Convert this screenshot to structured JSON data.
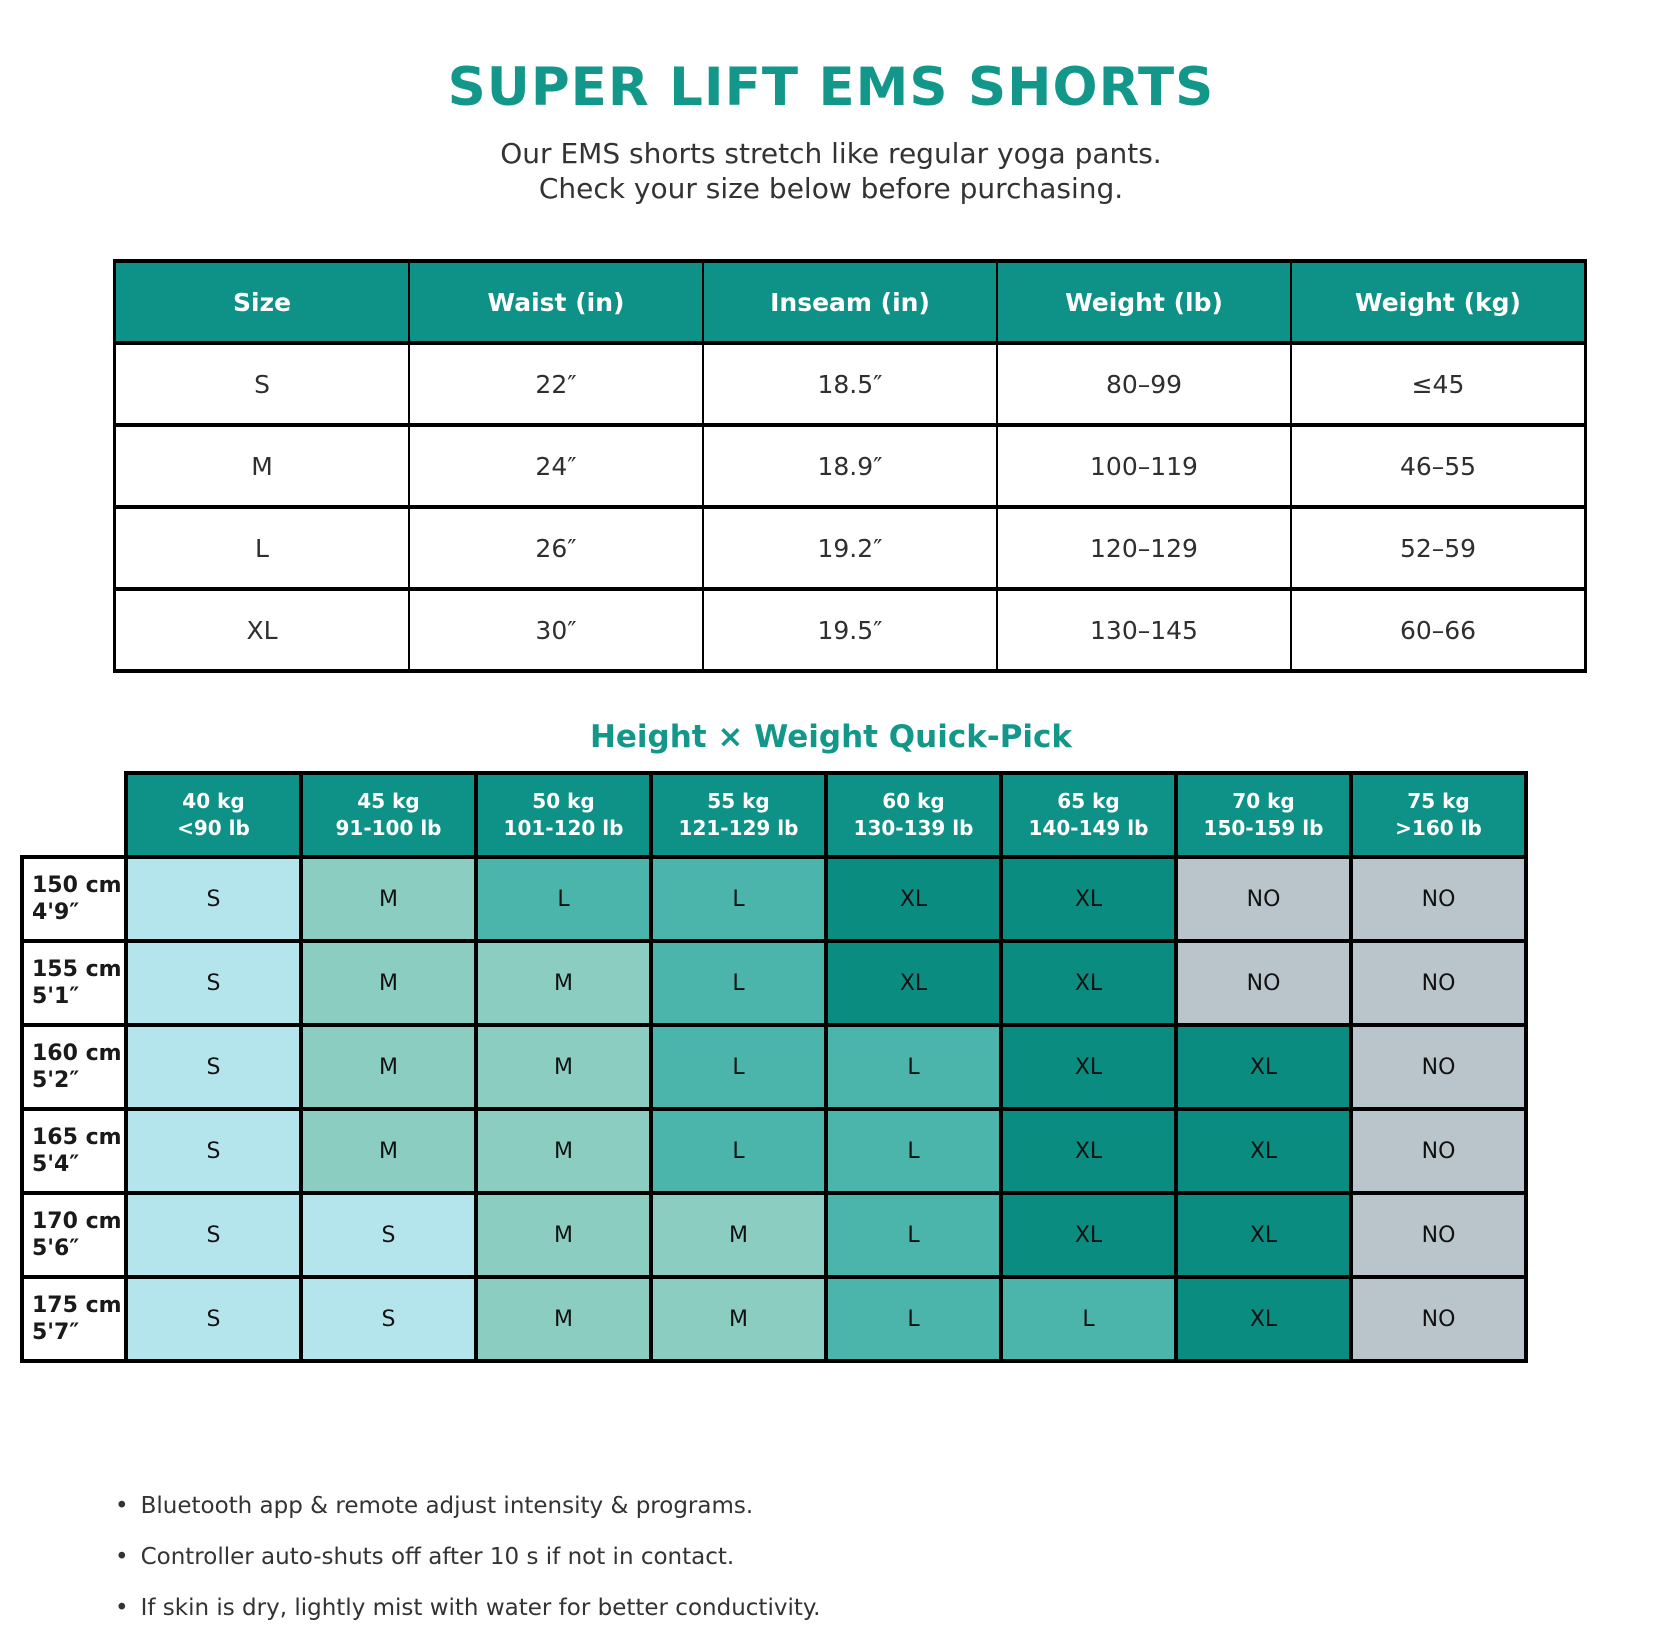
{
  "title": "SUPER LIFT EMS SHORTS",
  "subtitle_lines": [
    "Our EMS shorts stretch like regular yoga pants.",
    "Check your size below before purchasing."
  ],
  "colors": {
    "accent": "#12978A",
    "header_bg": "#0E9187",
    "S": "#B5E5EC",
    "M": "#8BCEC1",
    "L": "#4BB4AB",
    "XL": "#0B8C80",
    "NO": "#B9C5CB",
    "border": "#000000"
  },
  "size_table": {
    "columns": [
      "Size",
      "Waist (in)",
      "Inseam (in)",
      "Weight (lb)",
      "Weight (kg)"
    ],
    "rows": [
      [
        "S",
        "22″",
        "18.5″",
        "80–99",
        "≤45"
      ],
      [
        "M",
        "24″",
        "18.9″",
        "100–119",
        "46–55"
      ],
      [
        "L",
        "26″",
        "19.2″",
        "120–129",
        "52–59"
      ],
      [
        "XL",
        "30″",
        "19.5″",
        "130–145",
        "60–66"
      ]
    ]
  },
  "quickpick": {
    "heading": "Height × Weight Quick-Pick",
    "col_headers": [
      {
        "top": "40 kg",
        "bottom": "<90 lb"
      },
      {
        "top": "45 kg",
        "bottom": "91-100 lb"
      },
      {
        "top": "50 kg",
        "bottom": "101-120 lb"
      },
      {
        "top": "55 kg",
        "bottom": "121-129 lb"
      },
      {
        "top": "60 kg",
        "bottom": "130-139 lb"
      },
      {
        "top": "65 kg",
        "bottom": "140-149 lb"
      },
      {
        "top": "70 kg",
        "bottom": "150-159 lb"
      },
      {
        "top": "75 kg",
        "bottom": ">160 lb"
      }
    ],
    "row_headers": [
      {
        "top": "150 cm",
        "bottom": "4'9″"
      },
      {
        "top": "155 cm",
        "bottom": "5'1″"
      },
      {
        "top": "160 cm",
        "bottom": "5'2″"
      },
      {
        "top": "165 cm",
        "bottom": "5'4″"
      },
      {
        "top": "170 cm",
        "bottom": "5'6″"
      },
      {
        "top": "175 cm",
        "bottom": "5'7″"
      }
    ],
    "cells": [
      [
        "S",
        "M",
        "L",
        "L",
        "XL",
        "XL",
        "NO",
        "NO"
      ],
      [
        "S",
        "M",
        "M",
        "L",
        "XL",
        "XL",
        "NO",
        "NO"
      ],
      [
        "S",
        "M",
        "M",
        "L",
        "L",
        "XL",
        "XL",
        "NO"
      ],
      [
        "S",
        "M",
        "M",
        "L",
        "L",
        "XL",
        "XL",
        "NO"
      ],
      [
        "S",
        "S",
        "M",
        "M",
        "L",
        "XL",
        "XL",
        "NO"
      ],
      [
        "S",
        "S",
        "M",
        "M",
        "L",
        "L",
        "XL",
        "NO"
      ]
    ]
  },
  "bullets": {
    "marker": "•",
    "items": [
      "Bluetooth app & remote adjust intensity & programs.",
      "Controller auto-shuts off after 10 s if not in contact.",
      "If skin is dry, lightly mist with water for better conductivity."
    ]
  }
}
